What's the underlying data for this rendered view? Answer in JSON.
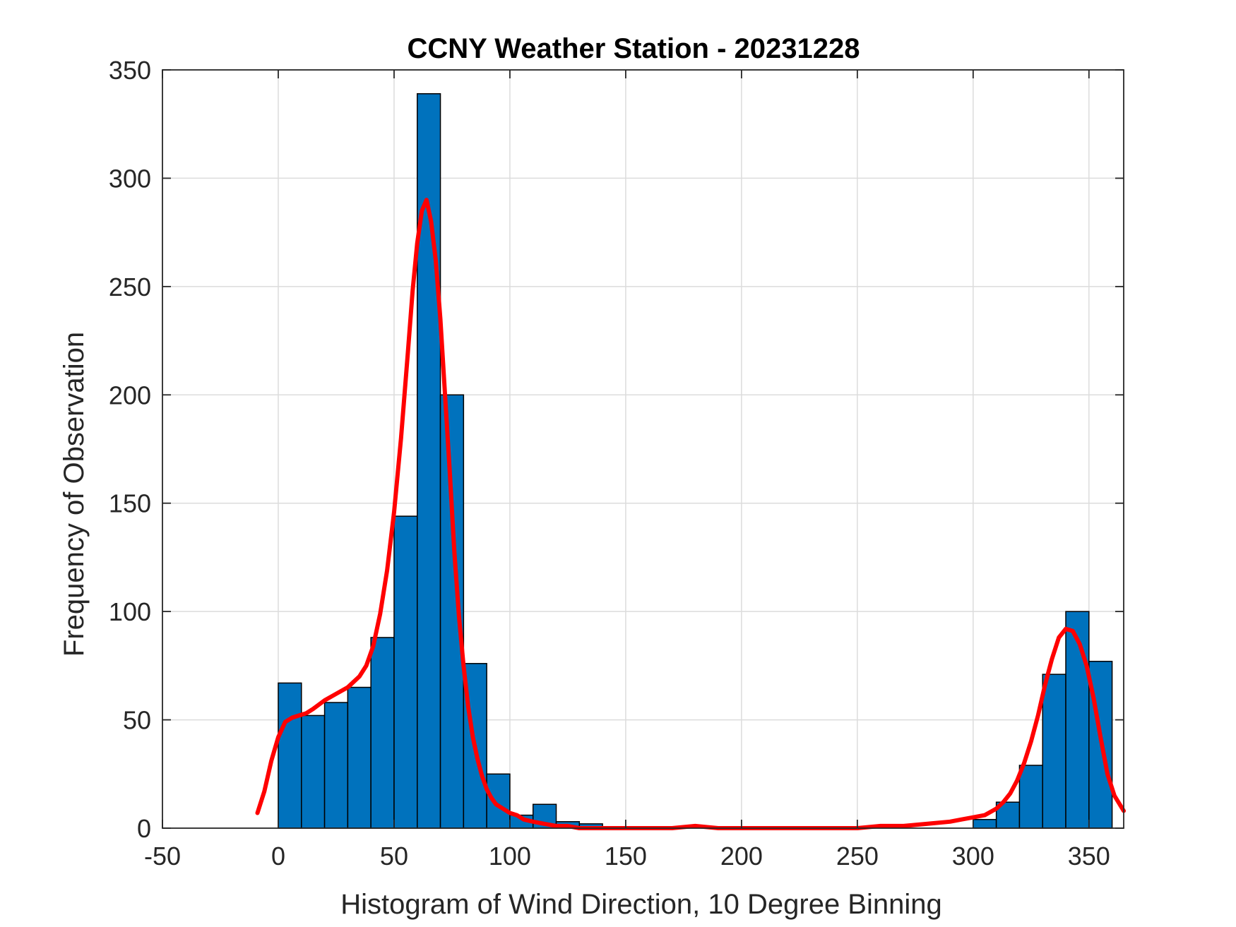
{
  "chart_data": {
    "type": "bar",
    "title": "CCNY Weather Station - 20231228",
    "xlabel": "Histogram of Wind Direction, 10 Degree Binning",
    "ylabel": "Frequency of Observation",
    "xlim": [
      -50,
      365
    ],
    "ylim": [
      0,
      350
    ],
    "xticks": [
      "-50",
      "0",
      "50",
      "100",
      "150",
      "200",
      "250",
      "300",
      "350"
    ],
    "yticks": [
      "0",
      "50",
      "100",
      "150",
      "200",
      "250",
      "300",
      "350"
    ],
    "grid": true,
    "bin_width": 10,
    "series": [
      {
        "type": "histogram",
        "color": "#0072BD",
        "bin_edges": [
          0,
          10,
          20,
          30,
          40,
          50,
          60,
          70,
          80,
          90,
          100,
          110,
          120,
          130,
          140,
          150,
          160,
          170,
          180,
          190,
          200,
          210,
          220,
          230,
          240,
          250,
          260,
          270,
          280,
          290,
          300,
          310,
          320,
          330,
          340,
          350,
          360
        ],
        "values": [
          67,
          52,
          58,
          65,
          88,
          144,
          339,
          200,
          76,
          25,
          6,
          11,
          3,
          2,
          0,
          0,
          0,
          0,
          0,
          0,
          0,
          0,
          0,
          0,
          0,
          0,
          0,
          0,
          0,
          0,
          4,
          12,
          29,
          71,
          100,
          77
        ]
      },
      {
        "type": "line",
        "color": "#FF0000",
        "x": [
          -9,
          -6,
          -3,
          0,
          3,
          6,
          9,
          12,
          15,
          20,
          25,
          30,
          35,
          38,
          41,
          44,
          47,
          50,
          53,
          56,
          58,
          60,
          62,
          64,
          66,
          68,
          70,
          72,
          74,
          76,
          78,
          80,
          82,
          84,
          86,
          88,
          90,
          92,
          94,
          97,
          100,
          103,
          106,
          110,
          115,
          120,
          125,
          130,
          135,
          140,
          145,
          150,
          160,
          170,
          180,
          190,
          200,
          210,
          220,
          230,
          240,
          250,
          260,
          270,
          280,
          290,
          295,
          300,
          305,
          310,
          313,
          316,
          319,
          322,
          325,
          328,
          331,
          334,
          337,
          340,
          343,
          346,
          349,
          352,
          355,
          358,
          361,
          365
        ],
        "y": [
          7,
          17,
          31,
          42,
          49,
          51,
          52,
          53,
          55,
          59,
          62,
          65,
          70,
          75,
          84,
          99,
          119,
          146,
          180,
          220,
          248,
          270,
          285,
          290,
          280,
          262,
          235,
          200,
          165,
          128,
          98,
          75,
          56,
          42,
          32,
          24,
          18,
          14,
          11,
          9,
          7,
          6,
          4,
          3,
          2,
          1,
          1,
          0,
          0,
          0,
          0,
          0,
          0,
          0,
          1,
          0,
          0,
          0,
          0,
          0,
          0,
          0,
          1,
          1,
          2,
          3,
          4,
          5,
          6,
          9,
          12,
          16,
          22,
          30,
          40,
          52,
          66,
          78,
          88,
          92,
          91,
          85,
          75,
          60,
          42,
          25,
          15,
          8
        ]
      }
    ]
  }
}
